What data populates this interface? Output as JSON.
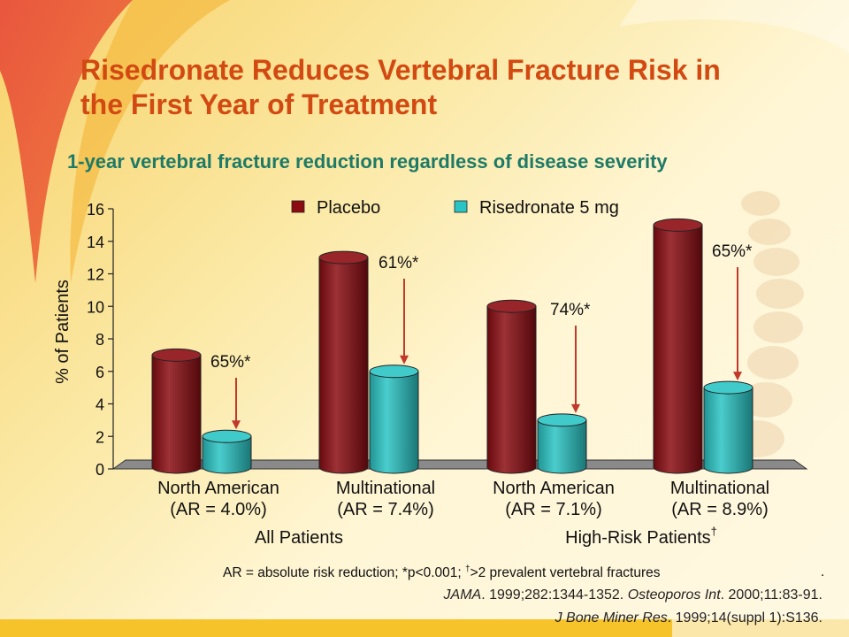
{
  "title": "Risedronate Reduces Vertebral Fracture Risk in the First Year of Treatment",
  "subtitle": "1-year vertebral fracture reduction regardless of disease severity",
  "chart_data": {
    "type": "bar",
    "ylabel": "% of Patients",
    "ylim": [
      0,
      16
    ],
    "yticks": [
      0,
      2,
      4,
      6,
      8,
      10,
      12,
      14,
      16
    ],
    "categories": [
      {
        "name": "North American",
        "ar": "(AR = 4.0%)"
      },
      {
        "name": "Multinational",
        "ar": "(AR = 7.4%)"
      },
      {
        "name": "North American",
        "ar": "(AR = 7.1%)"
      },
      {
        "name": "Multinational",
        "ar": "(AR = 8.9%)"
      }
    ],
    "groups": [
      {
        "label": "All Patients",
        "sup": "",
        "categories": [
          0,
          1
        ]
      },
      {
        "label": "High-Risk Patients",
        "sup": "†",
        "categories": [
          2,
          3
        ]
      }
    ],
    "series": [
      {
        "name": "Placebo",
        "color": "#8b0d12",
        "values": [
          7,
          13,
          10,
          15
        ]
      },
      {
        "name": "Risedronate 5 mg",
        "color": "#2bc4c4",
        "values": [
          2,
          6,
          3,
          5
        ]
      }
    ],
    "annotations": [
      "65%*",
      "61%*",
      "74%*",
      "65%*"
    ],
    "legend_position": "top"
  },
  "footnote": {
    "text1": "AR = absolute risk reduction;  *p<0.001; ",
    "sup": "†",
    "text2": ">2 prevalent vertebral fractures",
    "end": "."
  },
  "references": {
    "ref1_journal": "JAMA",
    "ref1_a": ". 1999;282:1344-1352. ",
    "ref1_journal2": "Osteoporos Int",
    "ref1_b": ". 2000;11:83-91.",
    "ref2_journal": "J Bone Miner Res",
    "ref2_a": ". 1999;14(suppl 1):S136."
  }
}
